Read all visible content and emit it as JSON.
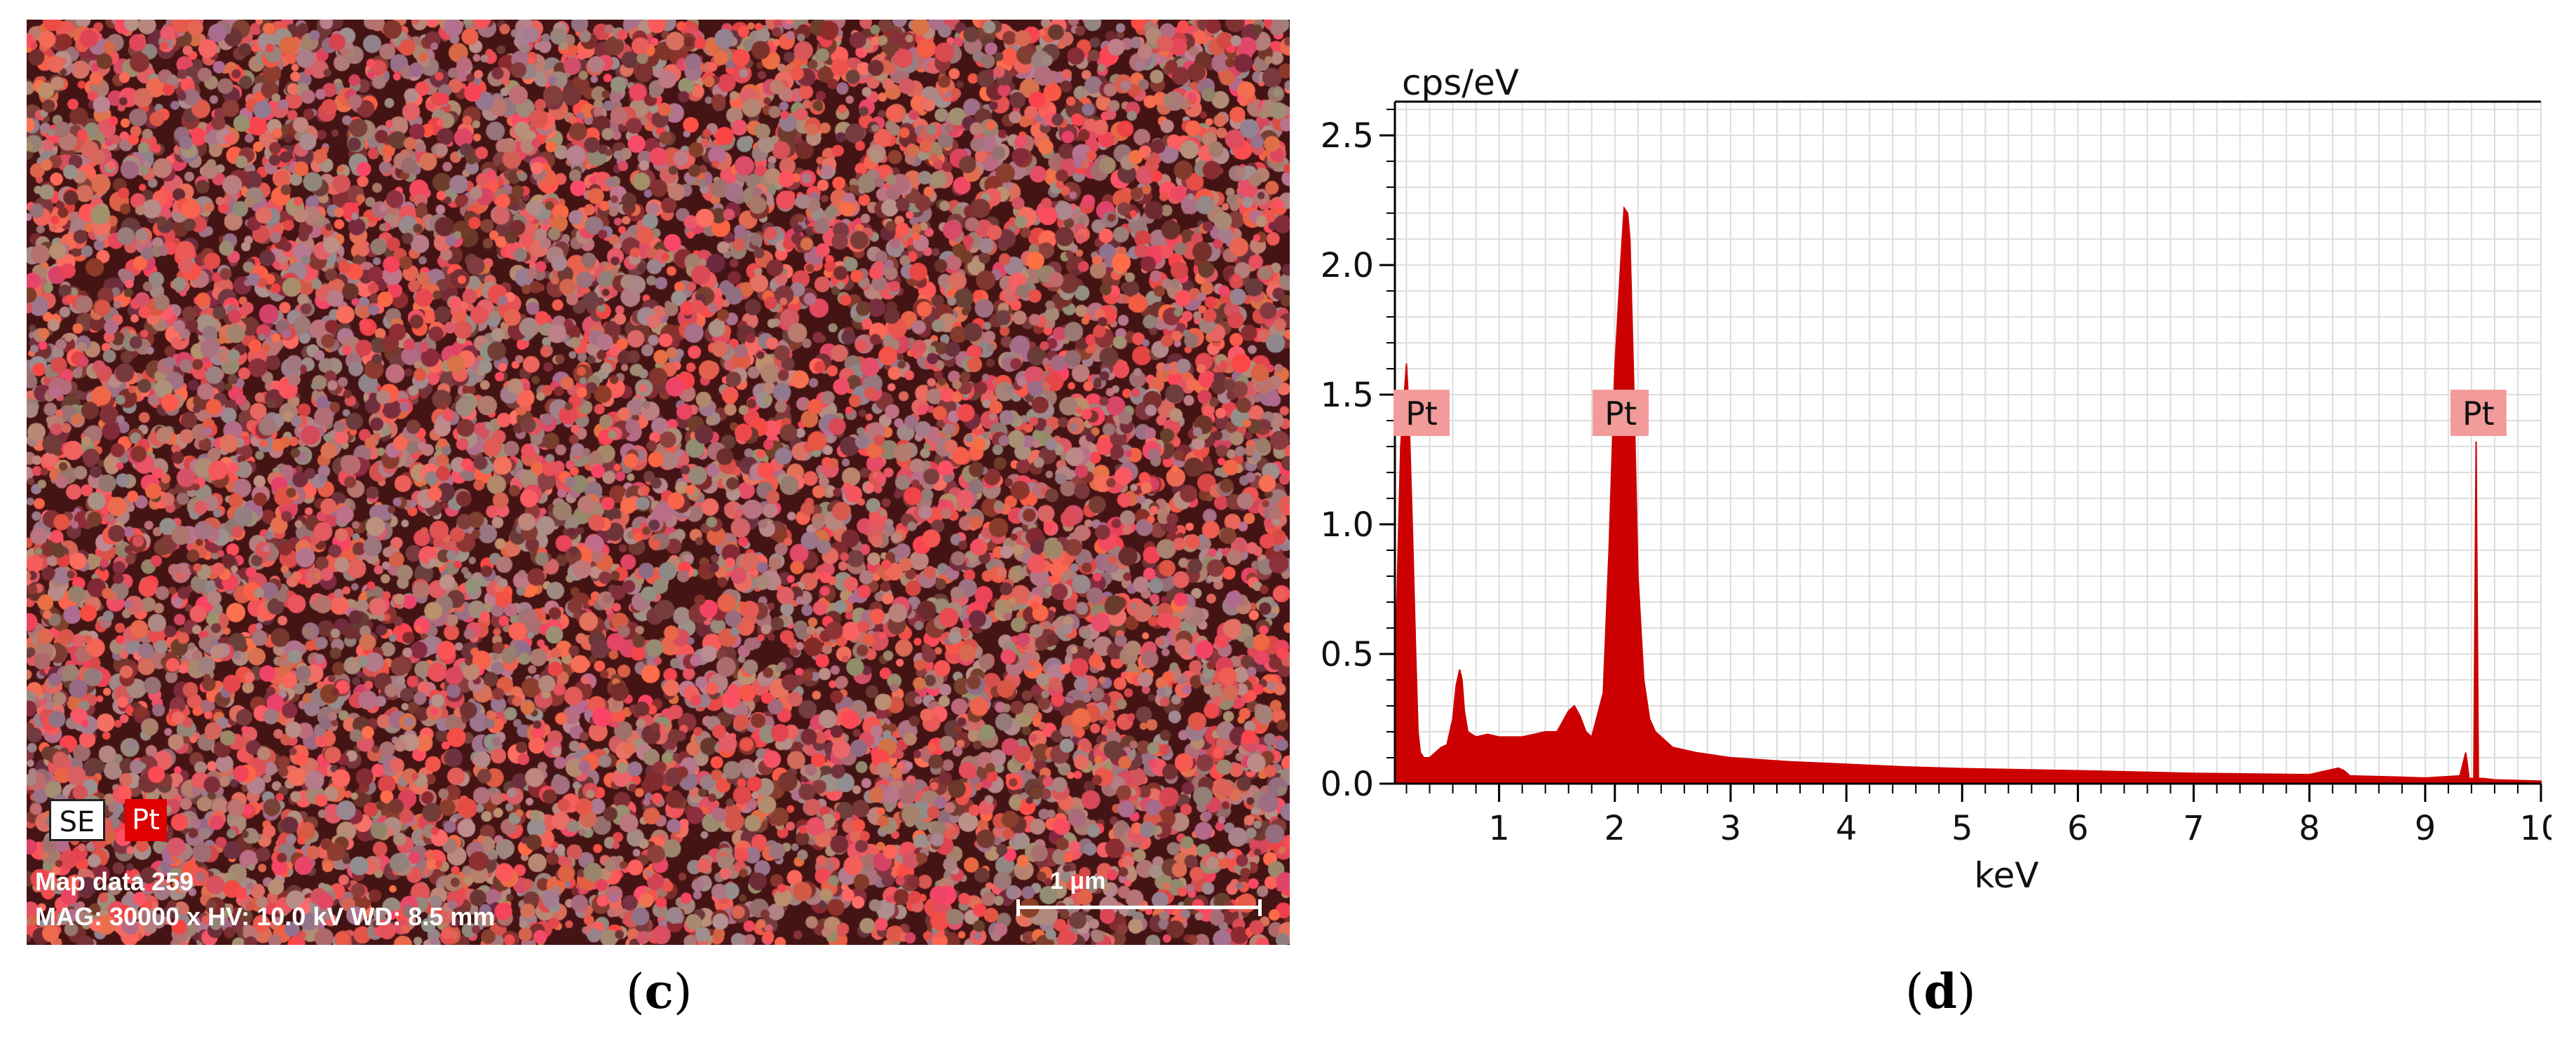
{
  "panel_c": {
    "label_open": "(",
    "label_letter": "c",
    "label_close": ")",
    "legend": [
      "SE",
      "Pt"
    ],
    "map_line1": "Map data 259",
    "map_line2": "MAG: 30000 x  HV: 10.0 kV  WD: 8.5 mm",
    "scale_label": "1 μm",
    "overlay_color": "#ff3030"
  },
  "panel_d": {
    "label_open": "(",
    "label_letter": "d",
    "label_close": ")"
  },
  "chart_data": {
    "type": "area",
    "title": "",
    "ylabel": "cps/eV",
    "xlabel": "keV",
    "xlim": [
      0.1,
      10
    ],
    "ylim": [
      0,
      2.63
    ],
    "x_ticks": [
      1,
      2,
      3,
      4,
      5,
      6,
      7,
      8,
      9,
      10
    ],
    "y_ticks": [
      0.0,
      0.5,
      1.0,
      1.5,
      2.0,
      2.5
    ],
    "y_tick_labels": [
      "0.0",
      "0.5",
      "1.0",
      "1.5",
      "2.0",
      "2.5"
    ],
    "grid": true,
    "fill_color": "#cc0000",
    "series": [
      {
        "x": [
          0.1,
          0.15,
          0.2,
          0.22,
          0.25,
          0.28,
          0.3,
          0.32,
          0.35,
          0.4,
          0.45,
          0.5,
          0.55,
          0.6,
          0.63,
          0.66,
          0.68,
          0.7,
          0.73,
          0.8,
          0.9,
          1.0,
          1.2,
          1.4,
          1.5,
          1.55,
          1.6,
          1.65,
          1.7,
          1.75,
          1.8,
          1.9,
          1.95,
          2.0,
          2.05,
          2.08,
          2.11,
          2.13,
          2.16,
          2.2,
          2.25,
          2.3,
          2.35,
          2.4,
          2.5,
          2.7,
          3.0,
          3.5,
          4.0,
          4.5,
          5.0,
          6.0,
          7.0,
          8.0,
          8.25,
          8.3,
          8.35,
          8.8,
          9.0,
          9.3,
          9.35,
          9.38,
          9.42,
          9.44,
          9.46,
          9.5,
          9.6,
          10.0
        ],
        "y": [
          0.4,
          1.3,
          1.62,
          1.45,
          1.0,
          0.5,
          0.2,
          0.12,
          0.1,
          0.1,
          0.12,
          0.14,
          0.15,
          0.25,
          0.38,
          0.44,
          0.4,
          0.28,
          0.2,
          0.18,
          0.19,
          0.18,
          0.18,
          0.2,
          0.2,
          0.24,
          0.28,
          0.3,
          0.26,
          0.2,
          0.18,
          0.35,
          0.9,
          1.6,
          2.0,
          2.22,
          2.2,
          2.1,
          1.6,
          0.8,
          0.4,
          0.25,
          0.2,
          0.18,
          0.14,
          0.12,
          0.1,
          0.085,
          0.075,
          0.065,
          0.058,
          0.05,
          0.04,
          0.035,
          0.06,
          0.05,
          0.03,
          0.025,
          0.022,
          0.03,
          0.12,
          0.02,
          0.02,
          1.32,
          0.02,
          0.02,
          0.015,
          0.01
        ]
      }
    ],
    "annotations": [
      {
        "text": "Pt",
        "x": 0.16,
        "y": 1.43
      },
      {
        "text": "Pt",
        "x": 2.05,
        "y": 1.43
      },
      {
        "text": "Pt",
        "x": 9.46,
        "y": 1.43
      }
    ]
  }
}
